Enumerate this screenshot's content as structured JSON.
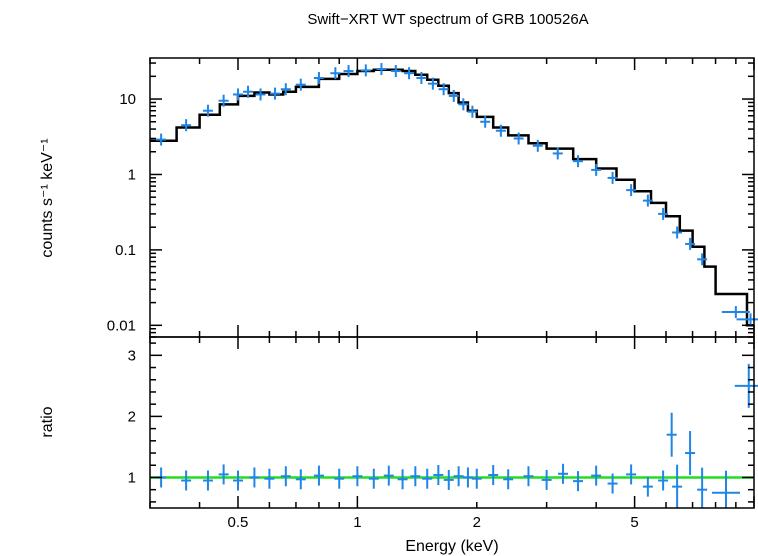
{
  "chart_data": [
    {
      "type": "scatter",
      "title": "Swift−XRT WT spectrum of GRB 100526A",
      "xlabel": "",
      "ylabel": "counts s⁻¹ keV⁻¹",
      "x_scale": "log",
      "y_scale": "log",
      "xlim": [
        0.3,
        10
      ],
      "ylim": [
        0.007,
        35
      ],
      "y_tick_labels": [
        {
          "value": 10,
          "label": "10"
        },
        {
          "value": 1,
          "label": "1"
        },
        {
          "value": 0.1,
          "label": "0.1"
        },
        {
          "value": 0.01,
          "label": "0.01"
        }
      ],
      "data_color": "#1f85e6",
      "model_color": "#000000",
      "model_points": [
        [
          0.3,
          2.8
        ],
        [
          0.35,
          4.2
        ],
        [
          0.4,
          6.2
        ],
        [
          0.45,
          8.5
        ],
        [
          0.5,
          11
        ],
        [
          0.55,
          12.2
        ],
        [
          0.6,
          11.5
        ],
        [
          0.65,
          12.5
        ],
        [
          0.7,
          14.5
        ],
        [
          0.8,
          18.5
        ],
        [
          0.9,
          21.5
        ],
        [
          1.0,
          23.5
        ],
        [
          1.1,
          24.5
        ],
        [
          1.2,
          24.5
        ],
        [
          1.3,
          23.5
        ],
        [
          1.4,
          21
        ],
        [
          1.5,
          18
        ],
        [
          1.6,
          15
        ],
        [
          1.7,
          12
        ],
        [
          1.8,
          9
        ],
        [
          1.9,
          7
        ],
        [
          2.0,
          5.8
        ],
        [
          2.2,
          4.2
        ],
        [
          2.4,
          3.3
        ],
        [
          2.7,
          2.6
        ],
        [
          3.0,
          2.2
        ],
        [
          3.5,
          1.6
        ],
        [
          4.0,
          1.2
        ],
        [
          4.5,
          0.85
        ],
        [
          5.0,
          0.6
        ],
        [
          5.5,
          0.42
        ],
        [
          6.0,
          0.28
        ],
        [
          6.5,
          0.18
        ],
        [
          7.0,
          0.11
        ],
        [
          7.5,
          0.06
        ],
        [
          8.0,
          0.026
        ],
        [
          9.5,
          0.026
        ],
        [
          9.6,
          0.01
        ],
        [
          10,
          0.01
        ]
      ],
      "data_points": [
        [
          0.32,
          2.9
        ],
        [
          0.37,
          4.5
        ],
        [
          0.42,
          7.0
        ],
        [
          0.46,
          9.5
        ],
        [
          0.5,
          11.5
        ],
        [
          0.53,
          12.5
        ],
        [
          0.57,
          11.5
        ],
        [
          0.62,
          11.8
        ],
        [
          0.66,
          13.5
        ],
        [
          0.72,
          15.5
        ],
        [
          0.8,
          19
        ],
        [
          0.88,
          22
        ],
        [
          0.95,
          23.5
        ],
        [
          1.05,
          24
        ],
        [
          1.15,
          25
        ],
        [
          1.25,
          23.5
        ],
        [
          1.35,
          22
        ],
        [
          1.45,
          19
        ],
        [
          1.55,
          16
        ],
        [
          1.65,
          13.5
        ],
        [
          1.75,
          11
        ],
        [
          1.85,
          8.5
        ],
        [
          1.95,
          6.8
        ],
        [
          2.1,
          5
        ],
        [
          2.3,
          3.8
        ],
        [
          2.55,
          3.0
        ],
        [
          2.85,
          2.4
        ],
        [
          3.2,
          1.9
        ],
        [
          3.6,
          1.5
        ],
        [
          4.0,
          1.15
        ],
        [
          4.4,
          0.9
        ],
        [
          4.9,
          0.62
        ],
        [
          5.4,
          0.45
        ],
        [
          5.9,
          0.3
        ],
        [
          6.4,
          0.17
        ],
        [
          6.9,
          0.12
        ],
        [
          7.4,
          0.075
        ],
        [
          9.0,
          0.015
        ],
        [
          9.8,
          0.012
        ]
      ]
    },
    {
      "type": "scatter",
      "title": "",
      "xlabel": "Energy (keV)",
      "ylabel": "ratio",
      "x_scale": "log",
      "y_scale": "linear",
      "xlim": [
        0.3,
        10
      ],
      "ylim": [
        0.5,
        3.3
      ],
      "x_tick_labels": [
        {
          "value": 0.5,
          "label": "0.5"
        },
        {
          "value": 1,
          "label": "1"
        },
        {
          "value": 2,
          "label": "2"
        },
        {
          "value": 5,
          "label": "5"
        }
      ],
      "y_tick_labels": [
        {
          "value": 1,
          "label": "1"
        },
        {
          "value": 2,
          "label": "2"
        },
        {
          "value": 3,
          "label": "3"
        }
      ],
      "reference_line": {
        "y": 1,
        "color": "#22dd22"
      },
      "data_color": "#1f85e6",
      "data_points": [
        [
          0.32,
          1.0
        ],
        [
          0.37,
          0.95
        ],
        [
          0.42,
          0.95
        ],
        [
          0.46,
          1.05
        ],
        [
          0.5,
          0.95
        ],
        [
          0.55,
          1.0
        ],
        [
          0.6,
          0.98
        ],
        [
          0.66,
          1.02
        ],
        [
          0.72,
          0.97
        ],
        [
          0.8,
          1.03
        ],
        [
          0.9,
          0.98
        ],
        [
          1.0,
          1.02
        ],
        [
          1.1,
          0.98
        ],
        [
          1.2,
          1.03
        ],
        [
          1.3,
          0.97
        ],
        [
          1.4,
          1.02
        ],
        [
          1.5,
          0.98
        ],
        [
          1.6,
          1.04
        ],
        [
          1.7,
          0.96
        ],
        [
          1.8,
          1.02
        ],
        [
          1.9,
          1.0
        ],
        [
          2.0,
          0.98
        ],
        [
          2.2,
          1.04
        ],
        [
          2.4,
          0.97
        ],
        [
          2.7,
          1.02
        ],
        [
          3.0,
          0.96
        ],
        [
          3.3,
          1.06
        ],
        [
          3.6,
          0.94
        ],
        [
          4.0,
          1.03
        ],
        [
          4.4,
          0.9
        ],
        [
          4.9,
          1.05
        ],
        [
          5.4,
          0.85
        ],
        [
          5.9,
          0.95
        ],
        [
          6.2,
          1.7
        ],
        [
          6.4,
          0.85
        ],
        [
          6.9,
          1.4
        ],
        [
          7.4,
          0.8
        ],
        [
          8.5,
          0.75
        ],
        [
          9.7,
          2.5
        ]
      ]
    }
  ]
}
